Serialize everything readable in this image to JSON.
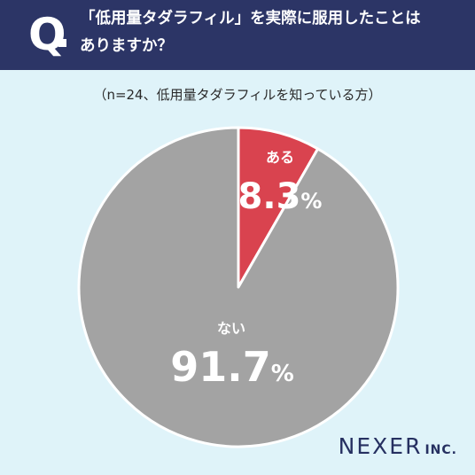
{
  "header": {
    "q_label": "Q",
    "question_line1": "「低用量タダラフィル」を実際に服用したことは",
    "question_line2": "ありますか？"
  },
  "sample_note": "（n=24、低用量タダラフィルを知っている方）",
  "chart_data": {
    "type": "pie",
    "categories": [
      "ある",
      "ない"
    ],
    "values": [
      8.3,
      91.7
    ],
    "value_labels": [
      "8.3",
      "91.7"
    ],
    "unit": "%",
    "colors": [
      "#d9434f",
      "#a3a3a3"
    ],
    "start_angle": "12 o'clock",
    "direction": "clockwise"
  },
  "logo": {
    "main": "NEXER",
    "sub": "INC."
  },
  "colors": {
    "background": "#dff3f9",
    "header": "#2c3566",
    "text_dark": "#2a2a2a",
    "logo": "#263061"
  }
}
